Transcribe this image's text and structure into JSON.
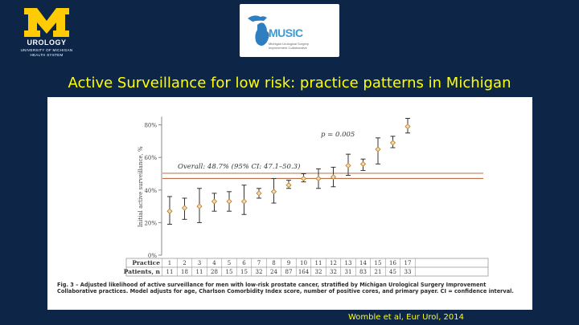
{
  "header": {
    "logo_letter": "M",
    "department": "UROLOGY",
    "university_line1": "UNIVERSITY OF MICHIGAN",
    "university_line2": "HEALTH SYSTEM",
    "partner_logo_word": "MUSIC",
    "partner_logo_subline1": "Michigan Urological Surgery",
    "partner_logo_subline2": "Improvement Collaborative"
  },
  "slide": {
    "title": "Active Surveillance for low risk: practice patterns in Michigan",
    "citation": "Womble et al, Eur Urol, 2014"
  },
  "figure": {
    "caption": "Fig. 3 – Adjusted likelihood of active surveillance for men with low-risk prostate cancer, stratified by Michigan Urological Surgery Improvement Collaborative practices. Model adjusts for age, Charlson Comorbidity Index score, number of positive cores, and primary payer. CI = confidence interval."
  },
  "chart_data": {
    "type": "scatter",
    "ylabel": "Initial active surveillance, %",
    "ylim": [
      0,
      85
    ],
    "yticks": [
      "0%",
      "20%",
      "40%",
      "60%",
      "80%"
    ],
    "grid": false,
    "p_value_label": "p = 0.005",
    "overall_label": "Overall: 48.7% (95% CI: 47.1–50.3)",
    "overall": {
      "estimate": 48.7,
      "ci_low": 47.1,
      "ci_high": 50.3
    },
    "table_headers": [
      "Practice",
      "Patients, n"
    ],
    "practices": [
      "1",
      "2",
      "3",
      "4",
      "5",
      "6",
      "7",
      "8",
      "9",
      "10",
      "11",
      "12",
      "13",
      "14",
      "15",
      "16",
      "17"
    ],
    "patients": [
      "11",
      "18",
      "11",
      "28",
      "15",
      "15",
      "32",
      "24",
      "87",
      "164",
      "32",
      "32",
      "31",
      "83",
      "21",
      "45",
      "33"
    ],
    "series": [
      {
        "estimate": [
          27,
          29,
          30,
          33,
          33,
          33,
          38,
          39,
          43,
          47,
          47,
          48,
          55,
          56,
          65,
          69,
          79
        ],
        "ci_low": [
          19,
          22,
          20,
          27,
          27,
          25,
          35,
          32,
          41,
          45,
          41,
          42,
          49,
          52,
          56,
          66,
          75
        ],
        "ci_high": [
          36,
          35,
          41,
          38,
          39,
          43,
          41,
          47,
          46,
          50,
          53,
          54,
          62,
          59,
          72,
          73,
          84
        ]
      }
    ]
  }
}
